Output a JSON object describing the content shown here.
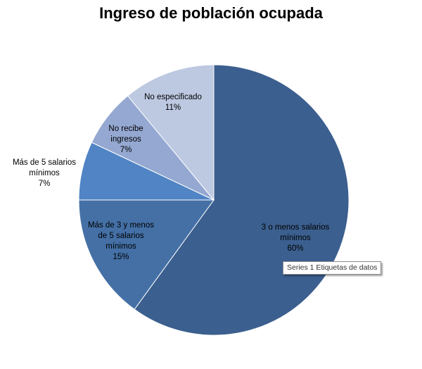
{
  "chart_data": {
    "type": "pie",
    "title": "Ingreso de población ocupada",
    "categories": [
      "3 o menos salarios mínimos",
      "Más de 3 y menos de 5 salarios mínimos",
      "Más de 5 salarios mínimos",
      "No recibe ingresos",
      "No especificado"
    ],
    "values": [
      60,
      15,
      7,
      7,
      11
    ],
    "value_labels": [
      "60%",
      "15%",
      "7%",
      "7%",
      "11%"
    ],
    "label_lines": [
      [
        "3 o menos salarios",
        "mínimos",
        "60%"
      ],
      [
        "Más de 3  y menos",
        "de 5  salarios",
        "mínimos",
        "15%"
      ],
      [
        "Más de 5  salarios",
        "mínimos",
        "7%"
      ],
      [
        "No recibe",
        "ingresos",
        "7%"
      ],
      [
        "No especificado",
        "11%"
      ]
    ],
    "colors": [
      "#3B5F8E",
      "#4470A6",
      "#5084C4",
      "#94A8D1",
      "#BDC8E1"
    ],
    "edge_color": "#ffffff",
    "start_angle_deg": 0,
    "direction": "clockwise"
  },
  "tooltip": {
    "text": "Series 1 Etiquetas de datos"
  }
}
